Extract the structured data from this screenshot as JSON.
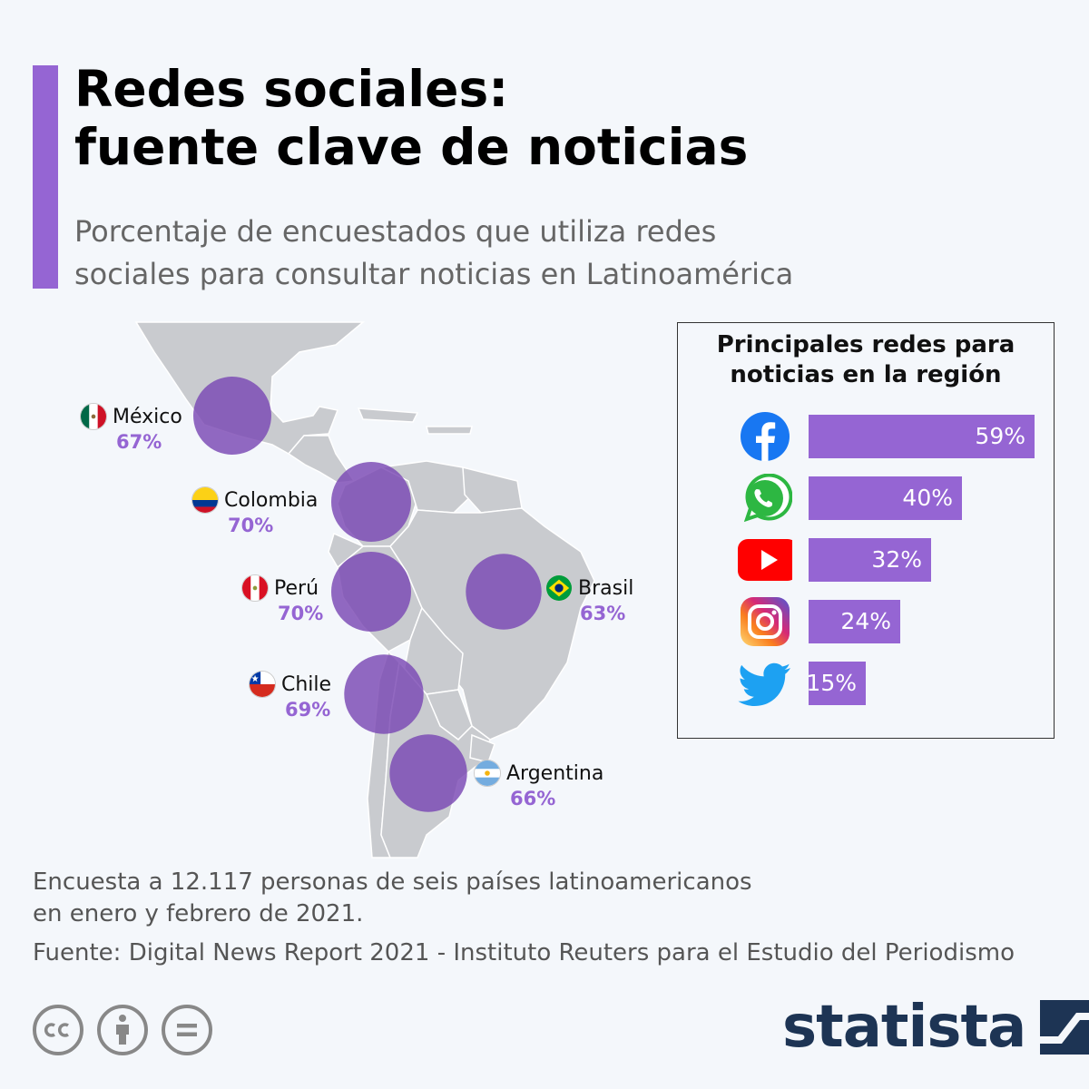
{
  "header": {
    "title_line1": "Redes sociales:",
    "title_line2": "fuente clave de noticias",
    "subtitle_line1": "Porcentaje de encuestados que utiliza redes",
    "subtitle_line2": "sociales para consultar noticias en Latinoamérica"
  },
  "colors": {
    "accent": "#9565d3",
    "bubble": "#7a48b3",
    "map": "#c9cbcf",
    "map_border": "#ffffff",
    "brand": "#1d3454"
  },
  "chart_data": [
    {
      "type": "bubble-map",
      "title": "",
      "points": [
        {
          "country": "México",
          "value": 67,
          "label": "67%",
          "flag": "mexico-flag"
        },
        {
          "country": "Colombia",
          "value": 70,
          "label": "70%",
          "flag": "colombia-flag"
        },
        {
          "country": "Perú",
          "value": 70,
          "label": "70%",
          "flag": "peru-flag"
        },
        {
          "country": "Brasil",
          "value": 63,
          "label": "63%",
          "flag": "brazil-flag"
        },
        {
          "country": "Chile",
          "value": 69,
          "label": "69%",
          "flag": "chile-flag"
        },
        {
          "country": "Argentina",
          "value": 66,
          "label": "66%",
          "flag": "argentina-flag"
        }
      ]
    },
    {
      "type": "bar",
      "title_line1": "Principales redes para",
      "title_line2": "noticias en la región",
      "categories": [
        "facebook-icon",
        "whatsapp-icon",
        "youtube-icon",
        "instagram-icon",
        "twitter-icon"
      ],
      "values": [
        59,
        40,
        32,
        24,
        15
      ],
      "labels": [
        "59%",
        "40%",
        "32%",
        "24%",
        "15%"
      ],
      "xlim": [
        0,
        59
      ]
    }
  ],
  "footer": {
    "note_line1": "Encuesta a 12.117 personas de seis países latinoamericanos",
    "note_line2": "en enero y febrero de 2021.",
    "source": "Fuente: Digital News Report 2021 - Instituto Reuters para el Estudio del Periodismo",
    "license_icons": [
      "cc-icon",
      "attribution-icon",
      "no-derivatives-icon"
    ],
    "brand": "statista"
  }
}
